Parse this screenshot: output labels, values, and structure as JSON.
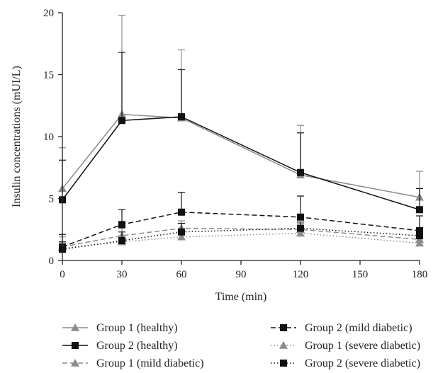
{
  "chart_data": {
    "type": "line",
    "xlabel": "Time (min)",
    "ylabel": "Insulin concentrations (mUI/L)",
    "xlim": [
      0,
      180
    ],
    "ylim": [
      0,
      20
    ],
    "xticks": [
      0,
      30,
      60,
      90,
      120,
      150,
      180
    ],
    "yticks": [
      0,
      5,
      10,
      15,
      20
    ],
    "grid": false,
    "legend_position": "bottom",
    "x": [
      0,
      30,
      60,
      120,
      180
    ],
    "series": [
      {
        "name": "Group 1 (healthy)",
        "values": [
          5.8,
          11.8,
          11.5,
          6.9,
          5.1
        ],
        "error": [
          3.3,
          8.0,
          5.5,
          4.0,
          2.1
        ],
        "color": "#8c8c8c",
        "marker": "triangle",
        "dash": "solid"
      },
      {
        "name": "Group 2 (healthy)",
        "values": [
          4.9,
          11.3,
          11.6,
          7.1,
          4.1
        ],
        "error": [
          3.2,
          5.5,
          3.8,
          3.2,
          1.7
        ],
        "color": "#111111",
        "marker": "square",
        "dash": "solid"
      },
      {
        "name": "Group 1 (mild diabetic)",
        "values": [
          1.1,
          2.0,
          2.6,
          2.5,
          1.7
        ],
        "error": [
          0.8,
          0.6,
          0.6,
          0.5,
          0.5
        ],
        "color": "#8c8c8c",
        "marker": "triangle",
        "dash": "dashed"
      },
      {
        "name": "Group 2 (mild diabetic)",
        "values": [
          1.1,
          2.9,
          3.9,
          3.5,
          2.4
        ],
        "error": [
          1.0,
          1.2,
          1.6,
          1.7,
          1.2
        ],
        "color": "#111111",
        "marker": "square",
        "dash": "dashed"
      },
      {
        "name": "Group 1 (severe diabetic)",
        "values": [
          1.0,
          1.5,
          1.9,
          2.2,
          1.4
        ],
        "error": [
          0.5,
          0.5,
          0.5,
          0.4,
          0.4
        ],
        "color": "#8c8c8c",
        "marker": "triangle",
        "dash": "dotted"
      },
      {
        "name": "Group 2 (severe diabetic)",
        "values": [
          0.9,
          1.6,
          2.3,
          2.6,
          2.0
        ],
        "error": [
          0.6,
          0.7,
          0.7,
          0.5,
          0.6
        ],
        "color": "#111111",
        "marker": "square",
        "dash": "dotted"
      }
    ]
  }
}
